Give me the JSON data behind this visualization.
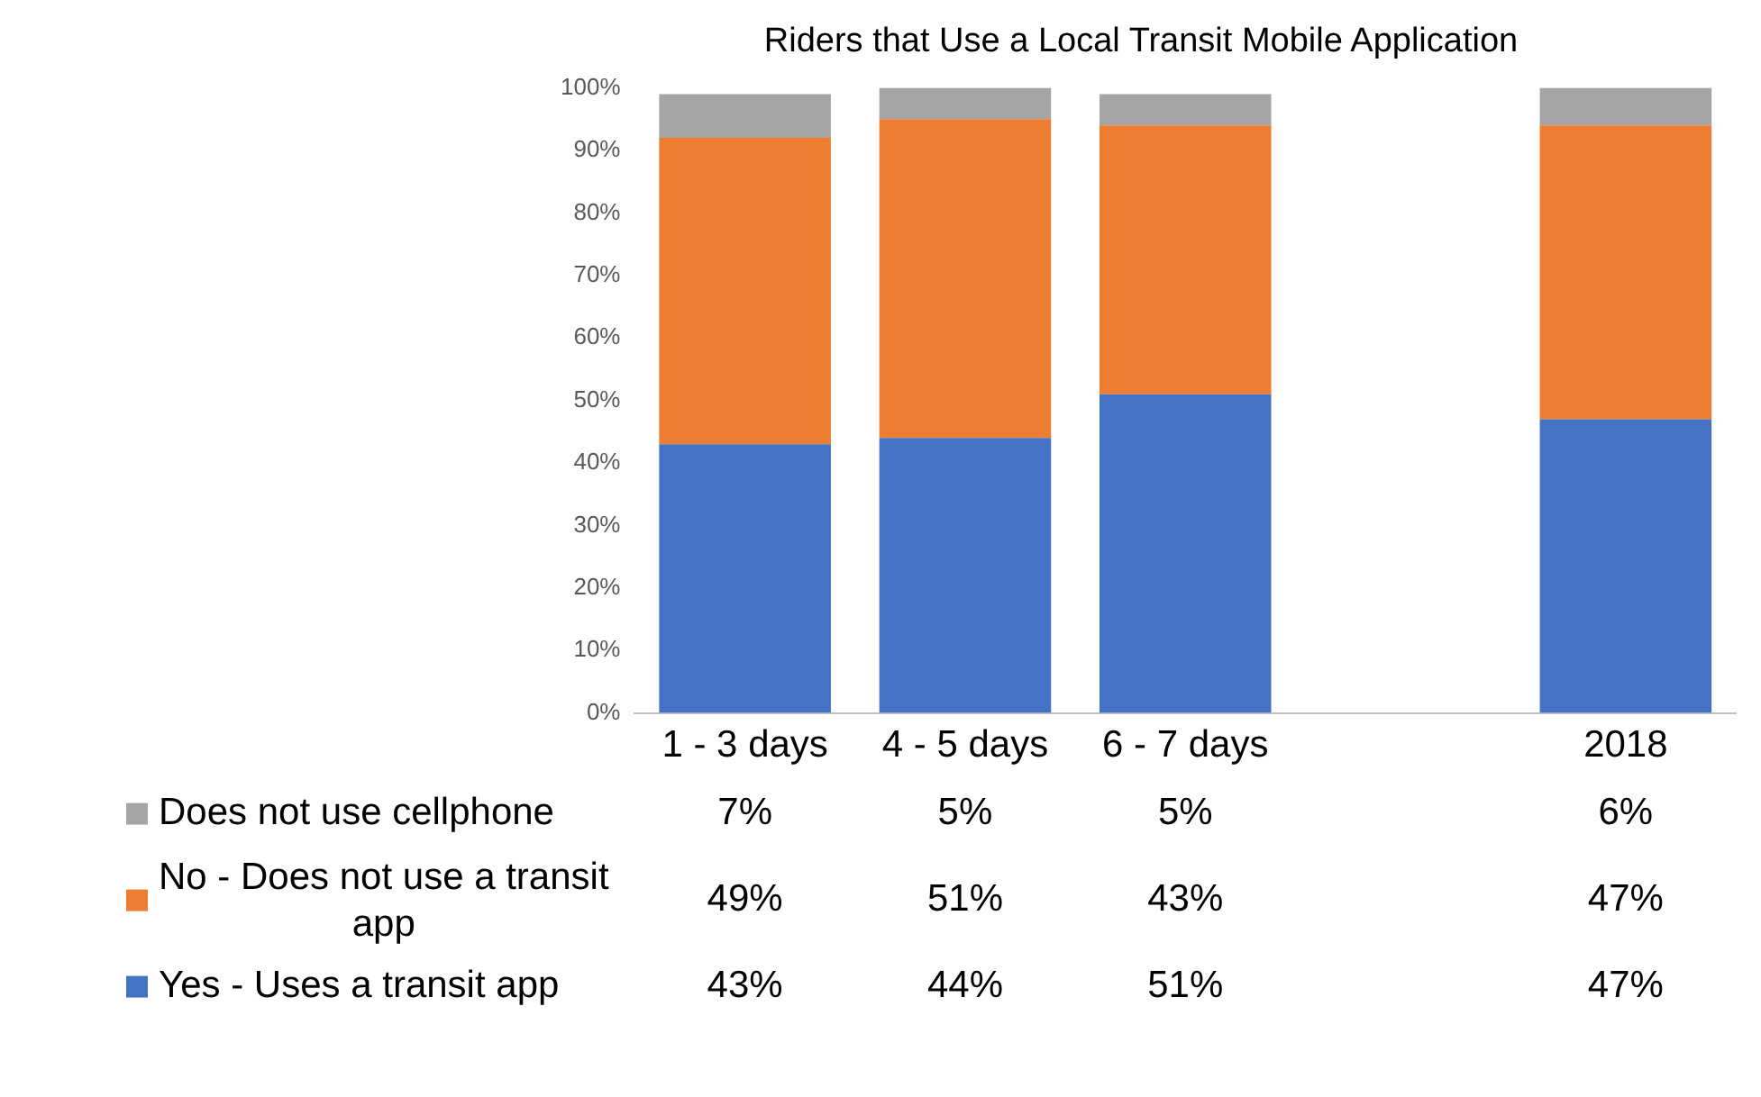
{
  "chart_data": {
    "type": "bar",
    "stacked": true,
    "title": "Riders that Use a Local Transit Mobile Application",
    "categories": [
      "1 - 3 days",
      "4 - 5 days",
      "6 - 7 days",
      null,
      "2018"
    ],
    "series": [
      {
        "name": "Yes - Uses a transit app",
        "color": "#4472c4",
        "values": [
          43,
          44,
          51,
          null,
          47
        ],
        "value_labels": [
          "43%",
          "44%",
          "51%",
          null,
          "47%"
        ]
      },
      {
        "name": "No - Does not use a transit app",
        "color": "#ed7d31",
        "values": [
          49,
          51,
          43,
          null,
          47
        ],
        "value_labels": [
          "49%",
          "51%",
          "43%",
          null,
          "47%"
        ]
      },
      {
        "name": "Does not use cellphone",
        "color": "#a5a5a5",
        "values": [
          7,
          5,
          5,
          null,
          6
        ],
        "value_labels": [
          "7%",
          "5%",
          "5%",
          null,
          "6%"
        ]
      }
    ],
    "ylim": [
      0,
      100
    ],
    "yticks": [
      {
        "value": 0,
        "label": "0%"
      },
      {
        "value": 10,
        "label": "10%"
      },
      {
        "value": 20,
        "label": "20%"
      },
      {
        "value": 30,
        "label": "30%"
      },
      {
        "value": 40,
        "label": "40%"
      },
      {
        "value": 50,
        "label": "50%"
      },
      {
        "value": 60,
        "label": "60%"
      },
      {
        "value": 70,
        "label": "70%"
      },
      {
        "value": 80,
        "label": "80%"
      },
      {
        "value": 90,
        "label": "90%"
      },
      {
        "value": 100,
        "label": "100%"
      }
    ],
    "legend": "bottom"
  }
}
